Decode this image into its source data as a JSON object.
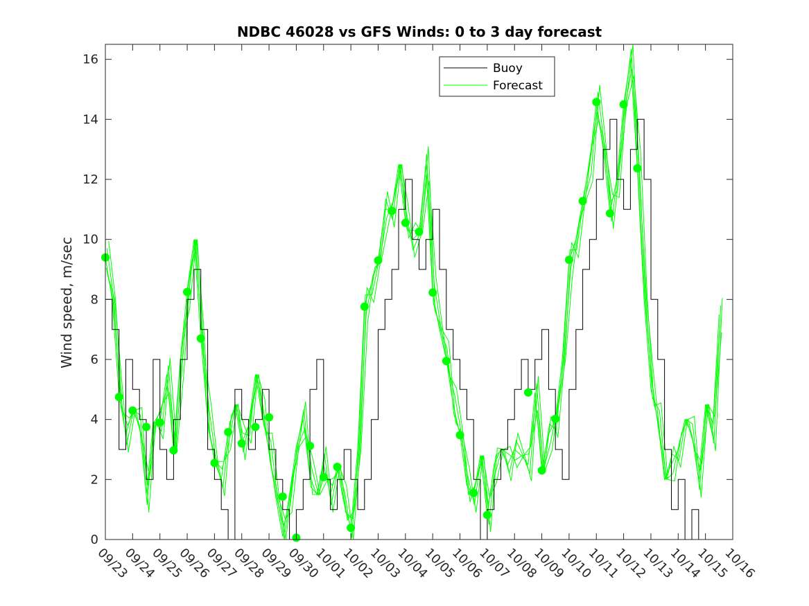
{
  "chart_data": {
    "type": "line",
    "title": "NDBC 46028 vs GFS Winds: 0 to 3 day forecast",
    "xlabel": "",
    "ylabel": "Wind speed, m/sec",
    "x_unit": "date",
    "x_ticks": [
      "09/23",
      "09/24",
      "09/25",
      "09/26",
      "09/27",
      "09/28",
      "09/29",
      "09/30",
      "10/01",
      "10/02",
      "10/03",
      "10/04",
      "10/05",
      "10/06",
      "10/07",
      "10/08",
      "10/09",
      "10/10",
      "10/11",
      "10/12",
      "10/13",
      "10/14",
      "10/15",
      "10/16"
    ],
    "ylim": [
      0,
      16.5
    ],
    "y_ticks": [
      0,
      2,
      4,
      6,
      8,
      10,
      12,
      14,
      16
    ],
    "xlim": [
      "09/23",
      "10/16"
    ],
    "legend": {
      "placement": "top-center",
      "entries": [
        "Buoy",
        "Forecast"
      ]
    },
    "colors": {
      "buoy": "#000000",
      "forecast": "#00ff00",
      "axis": "#262626"
    },
    "series": [
      {
        "name": "Buoy",
        "style": "black-stair-line",
        "points": [
          [
            "09/23 00:00",
            8
          ],
          [
            "09/23 06:00",
            7
          ],
          [
            "09/23 12:00",
            3
          ],
          [
            "09/23 18:00",
            6
          ],
          [
            "09/24 00:00",
            5
          ],
          [
            "09/24 06:00",
            4
          ],
          [
            "09/24 12:00",
            2
          ],
          [
            "09/24 18:00",
            6
          ],
          [
            "09/25 00:00",
            3
          ],
          [
            "09/25 06:00",
            2
          ],
          [
            "09/25 12:00",
            4
          ],
          [
            "09/25 18:00",
            6
          ],
          [
            "09/26 00:00",
            8
          ],
          [
            "09/26 06:00",
            9
          ],
          [
            "09/26 12:00",
            7
          ],
          [
            "09/26 18:00",
            3
          ],
          [
            "09/27 00:00",
            2
          ],
          [
            "09/27 06:00",
            1
          ],
          [
            "09/27 12:00",
            0
          ],
          [
            "09/27 18:00",
            5
          ],
          [
            "09/28 00:00",
            4
          ],
          [
            "09/28 06:00",
            3
          ],
          [
            "09/28 12:00",
            4
          ],
          [
            "09/28 18:00",
            5
          ],
          [
            "09/29 00:00",
            3
          ],
          [
            "09/29 06:00",
            2
          ],
          [
            "09/29 12:00",
            1
          ],
          [
            "09/29 18:00",
            0
          ],
          [
            "09/30 00:00",
            1
          ],
          [
            "09/30 06:00",
            2
          ],
          [
            "09/30 12:00",
            5
          ],
          [
            "09/30 18:00",
            6
          ],
          [
            "10/01 00:00",
            2
          ],
          [
            "10/01 06:00",
            1
          ],
          [
            "10/01 12:00",
            2
          ],
          [
            "10/01 18:00",
            3
          ],
          [
            "10/02 00:00",
            2
          ],
          [
            "10/02 06:00",
            1
          ],
          [
            "10/02 12:00",
            2
          ],
          [
            "10/02 18:00",
            4
          ],
          [
            "10/03 00:00",
            7
          ],
          [
            "10/03 06:00",
            8
          ],
          [
            "10/03 12:00",
            9
          ],
          [
            "10/03 18:00",
            11
          ],
          [
            "10/04 00:00",
            12
          ],
          [
            "10/04 06:00",
            10
          ],
          [
            "10/04 12:00",
            9
          ],
          [
            "10/04 18:00",
            10
          ],
          [
            "10/05 00:00",
            11
          ],
          [
            "10/05 06:00",
            9
          ],
          [
            "10/05 12:00",
            7
          ],
          [
            "10/05 18:00",
            6
          ],
          [
            "10/06 00:00",
            5
          ],
          [
            "10/06 06:00",
            4
          ],
          [
            "10/06 12:00",
            2
          ],
          [
            "10/06 18:00",
            0
          ],
          [
            "10/07 00:00",
            1
          ],
          [
            "10/07 06:00",
            2
          ],
          [
            "10/07 12:00",
            3
          ],
          [
            "10/07 18:00",
            4
          ],
          [
            "10/08 00:00",
            5
          ],
          [
            "10/08 06:00",
            6
          ],
          [
            "10/08 12:00",
            5
          ],
          [
            "10/08 18:00",
            6
          ],
          [
            "10/09 00:00",
            7
          ],
          [
            "10/09 06:00",
            5
          ],
          [
            "10/09 12:00",
            3
          ],
          [
            "10/09 18:00",
            2
          ],
          [
            "10/10 00:00",
            5
          ],
          [
            "10/10 06:00",
            7
          ],
          [
            "10/10 12:00",
            9
          ],
          [
            "10/10 18:00",
            10
          ],
          [
            "10/11 00:00",
            12
          ],
          [
            "10/11 06:00",
            13
          ],
          [
            "10/11 12:00",
            14
          ],
          [
            "10/11 18:00",
            12
          ],
          [
            "10/12 00:00",
            11
          ],
          [
            "10/12 06:00",
            13
          ],
          [
            "10/12 12:00",
            14
          ],
          [
            "10/12 18:00",
            12
          ],
          [
            "10/13 00:00",
            8
          ],
          [
            "10/13 06:00",
            6
          ],
          [
            "10/13 12:00",
            3
          ],
          [
            "10/13 18:00",
            1
          ],
          [
            "10/14 00:00",
            2
          ],
          [
            "10/14 06:00",
            0
          ],
          [
            "10/14 12:00",
            1
          ],
          [
            "10/14 18:00",
            0
          ],
          [
            "10/15 00:00",
            0
          ]
        ]
      },
      {
        "name": "Forecast",
        "style": "green-lines",
        "points": [
          [
            "09/23 00:00",
            9.4
          ],
          [
            "09/23 06:00",
            8
          ],
          [
            "09/23 12:00",
            4.8
          ],
          [
            "09/23 18:00",
            3.5
          ],
          [
            "09/24 00:00",
            4.3
          ],
          [
            "09/24 06:00",
            3.8
          ],
          [
            "09/24 12:00",
            1.5
          ],
          [
            "09/24 18:00",
            3.9
          ],
          [
            "09/25 00:00",
            3.9
          ],
          [
            "09/25 06:00",
            5.5
          ],
          [
            "09/25 12:00",
            3
          ],
          [
            "09/25 18:00",
            6
          ],
          [
            "09/26 00:00",
            8.3
          ],
          [
            "09/26 06:00",
            10
          ],
          [
            "09/26 12:00",
            6.7
          ],
          [
            "09/26 18:00",
            4
          ],
          [
            "09/27 00:00",
            2.6
          ],
          [
            "09/27 06:00",
            2
          ],
          [
            "09/27 12:00",
            3.6
          ],
          [
            "09/27 18:00",
            4.5
          ],
          [
            "09/28 00:00",
            3.2
          ],
          [
            "09/28 06:00",
            3.8
          ],
          [
            "09/28 12:00",
            5.5
          ],
          [
            "09/28 18:00",
            4.1
          ],
          [
            "09/29 00:00",
            3
          ],
          [
            "09/29 06:00",
            1.4
          ],
          [
            "09/29 12:00",
            0.1
          ],
          [
            "09/29 18:00",
            1.5
          ],
          [
            "09/30 00:00",
            3.1
          ],
          [
            "09/30 06:00",
            4
          ],
          [
            "09/30 12:00",
            2.1
          ],
          [
            "09/30 18:00",
            1.5
          ],
          [
            "10/01 00:00",
            2.5
          ],
          [
            "10/01 06:00",
            1.5
          ],
          [
            "10/01 12:00",
            2.4
          ],
          [
            "10/01 18:00",
            1.2
          ],
          [
            "10/02 00:00",
            0.4
          ],
          [
            "10/02 06:00",
            3
          ],
          [
            "10/02 12:00",
            7.8
          ],
          [
            "10/02 18:00",
            8.5
          ],
          [
            "10/03 00:00",
            9.3
          ],
          [
            "10/03 06:00",
            11
          ],
          [
            "10/03 12:00",
            11
          ],
          [
            "10/03 18:00",
            12.5
          ],
          [
            "10/04 00:00",
            10.6
          ],
          [
            "10/04 06:00",
            10
          ],
          [
            "10/04 12:00",
            10.2
          ],
          [
            "10/04 18:00",
            12.5
          ],
          [
            "10/05 00:00",
            8.2
          ],
          [
            "10/05 06:00",
            7
          ],
          [
            "10/05 12:00",
            6
          ],
          [
            "10/05 18:00",
            4.5
          ],
          [
            "10/06 00:00",
            3.5
          ],
          [
            "10/06 06:00",
            1.8
          ],
          [
            "10/06 12:00",
            1.5
          ],
          [
            "10/06 18:00",
            2.8
          ],
          [
            "10/07 00:00",
            0.8
          ],
          [
            "10/07 06:00",
            2.5
          ],
          [
            "10/07 12:00",
            3
          ],
          [
            "10/07 18:00",
            2.5
          ],
          [
            "10/08 00:00",
            3
          ],
          [
            "10/08 06:00",
            2.8
          ],
          [
            "10/08 12:00",
            2.5
          ],
          [
            "10/08 18:00",
            4.9
          ],
          [
            "10/09 00:00",
            2.3
          ],
          [
            "10/09 06:00",
            3.5
          ],
          [
            "10/09 12:00",
            4
          ],
          [
            "10/09 18:00",
            6
          ],
          [
            "10/10 00:00",
            9.3
          ],
          [
            "10/10 06:00",
            10
          ],
          [
            "10/10 12:00",
            11.3
          ],
          [
            "10/10 18:00",
            12.5
          ],
          [
            "10/11 00:00",
            14.6
          ],
          [
            "10/11 06:00",
            13
          ],
          [
            "10/11 12:00",
            10.9
          ],
          [
            "10/11 18:00",
            12
          ],
          [
            "10/12 00:00",
            14.5
          ],
          [
            "10/12 06:00",
            16
          ],
          [
            "10/12 12:00",
            12.4
          ],
          [
            "10/12 18:00",
            8
          ],
          [
            "10/13 00:00",
            5
          ],
          [
            "10/13 06:00",
            4
          ],
          [
            "10/13 12:00",
            2
          ],
          [
            "10/13 18:00",
            2.5
          ],
          [
            "10/14 00:00",
            3
          ],
          [
            "10/14 06:00",
            4
          ],
          [
            "10/14 12:00",
            3.5
          ],
          [
            "10/14 18:00",
            2
          ],
          [
            "10/15 00:00",
            4.5
          ],
          [
            "10/15 06:00",
            3.5
          ],
          [
            "10/15 12:00",
            7.5
          ]
        ]
      },
      {
        "name": "",
        "style": "green-markers",
        "points": [
          [
            "09/23 00:00",
            9.4
          ],
          [
            "09/23 12:00",
            4.75
          ],
          [
            "09/24 00:00",
            4.3
          ],
          [
            "09/24 12:00",
            3.75
          ],
          [
            "09/25 00:00",
            3.9
          ],
          [
            "09/25 12:00",
            2.97
          ],
          [
            "09/26 00:00",
            8.25
          ],
          [
            "09/26 12:00",
            6.7
          ],
          [
            "09/27 00:00",
            2.55
          ],
          [
            "09/27 12:00",
            3.58
          ],
          [
            "09/28 00:00",
            3.2
          ],
          [
            "09/28 12:00",
            3.75
          ],
          [
            "09/29 00:00",
            4.07
          ],
          [
            "09/29 12:00",
            1.43
          ],
          [
            "09/30 00:00",
            0.06
          ],
          [
            "09/30 12:00",
            3.12
          ],
          [
            "10/01 00:00",
            2.08
          ],
          [
            "10/01 12:00",
            2.42
          ],
          [
            "10/02 00:00",
            0.39
          ],
          [
            "10/02 12:00",
            7.76
          ],
          [
            "10/03 00:00",
            9.3
          ],
          [
            "10/03 12:00",
            10.95
          ],
          [
            "10/04 00:00",
            10.55
          ],
          [
            "10/04 12:00",
            10.25
          ],
          [
            "10/05 00:00",
            8.23
          ],
          [
            "10/05 12:00",
            5.95
          ],
          [
            "10/06 00:00",
            3.48
          ],
          [
            "10/06 12:00",
            1.55
          ],
          [
            "10/07 00:00",
            0.82
          ],
          [
            "10/08 12:00",
            4.9
          ],
          [
            "10/09 00:00",
            2.3
          ],
          [
            "10/09 12:00",
            4.02
          ],
          [
            "10/10 00:00",
            9.32
          ],
          [
            "10/10 12:00",
            11.28
          ],
          [
            "10/11 00:00",
            14.58
          ],
          [
            "10/11 12:00",
            10.87
          ],
          [
            "10/12 00:00",
            14.5
          ],
          [
            "10/12 12:00",
            12.37
          ]
        ]
      }
    ]
  }
}
